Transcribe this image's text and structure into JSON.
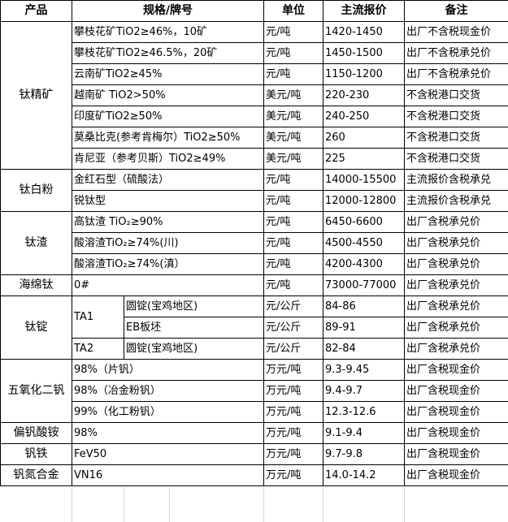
{
  "headers": [
    "产品",
    "规格/牌号",
    "单位",
    "主流报价",
    "备注"
  ],
  "groups": [
    {
      "product": "钛精矿",
      "items": [
        {
          "spec": "攀枝花矿TiO2≥46%，10矿",
          "unit": "元/吨",
          "price": "1420-1450",
          "note": "出厂不含税现金价"
        },
        {
          "spec": "攀枝花矿TiO2≥46.5%，20矿",
          "unit": "元/吨",
          "price": "1450-1500",
          "note": "出厂不含税承兑价"
        },
        {
          "spec": "云南矿TiO2≥45%",
          "unit": "元/吨",
          "price": "1150-1200",
          "note": "出厂不含税承兑价"
        },
        {
          "spec": "越南矿 TiO2>50%",
          "unit": "美元/吨",
          "price": "220-230",
          "note": "不含税港口交货"
        },
        {
          "spec": "印度矿TiO2≥50%",
          "unit": "美元/吨",
          "price": "240-250",
          "note": "不含税港口交货"
        },
        {
          "spec": "莫桑比克(参考肯梅尔）TiO2≥50%",
          "unit": "美元/吨",
          "price": "260",
          "note": "不含税港口交货"
        },
        {
          "spec": "肯尼亚（参考贝斯）TiO2≥49%",
          "unit": "美元/吨",
          "price": "225",
          "note": "不含税港口交货"
        }
      ]
    },
    {
      "product": "钛白粉",
      "items": [
        {
          "spec": "金红石型（硫酸法）",
          "unit": "元/吨",
          "price": "14000-15500",
          "note": "主流报价含税承兑"
        },
        {
          "spec": "锐钛型",
          "unit": "元/吨",
          "price": "12000-12800",
          "note": "主流报价含税承兑"
        }
      ]
    },
    {
      "product": "钛渣",
      "items": [
        {
          "spec": "高钛渣 TiO₂≥90%",
          "unit": "元/吨",
          "price": "6450-6600",
          "note": "出厂含税承兑价"
        },
        {
          "spec": "酸溶渣TiO₂≥74%(川)",
          "unit": "元/吨",
          "price": "4500-4550",
          "note": "出厂含税承兑价"
        },
        {
          "spec": "酸溶渣TiO₂≥74%(滇）",
          "unit": "元/吨",
          "price": "4200-4300",
          "note": "出厂含税承兑价"
        }
      ]
    },
    {
      "product": "海绵钛",
      "items": [
        {
          "spec": "0#",
          "unit": "元/吨",
          "price": "73000-77000",
          "note": "出厂含税承兑价"
        }
      ]
    },
    {
      "product": "钛锭",
      "grades": [
        {
          "grade": "TA1",
          "items": [
            {
              "spec": "圆锭(宝鸡地区)",
              "unit": "元/公斤",
              "price": "84-86",
              "note": "出厂含税承兑价"
            },
            {
              "spec": "EB板坯",
              "unit": "元/公斤",
              "price": "89-91",
              "note": "出厂含税承兑价"
            }
          ]
        },
        {
          "grade": "TA2",
          "items": [
            {
              "spec": "圆锭(宝鸡地区)",
              "unit": "元/公斤",
              "price": "82-84",
              "note": "出厂含税承兑价"
            }
          ]
        }
      ]
    },
    {
      "product": "五氧化二钒",
      "items": [
        {
          "spec": "98%（片钒）",
          "unit": "万元/吨",
          "price": "9.3-9.45",
          "note": "出厂含税现金价"
        },
        {
          "spec": "98%（冶金粉钒）",
          "unit": "万元/吨",
          "price": "9.4-9.7",
          "note": "出厂含税现金价"
        },
        {
          "spec": "99%（化工粉钒）",
          "unit": "万元/吨",
          "price": "12.3-12.6",
          "note": "出厂含税现金价"
        }
      ]
    },
    {
      "product": "偏钒酸铵",
      "items": [
        {
          "spec": "98%",
          "unit": "万元/吨",
          "price": "9.1-9.4",
          "note": "出厂含税现金价"
        }
      ]
    },
    {
      "product": "钒铁",
      "items": [
        {
          "spec": "FeV50",
          "unit": "万元/吨",
          "price": "9.7-9.8",
          "note": "出厂含税现金价"
        }
      ]
    },
    {
      "product": "钒氮合金",
      "items": [
        {
          "spec": "VN16",
          "unit": "万元/吨",
          "price": "14.0-14.2",
          "note": "出厂含税现金价"
        }
      ]
    }
  ]
}
